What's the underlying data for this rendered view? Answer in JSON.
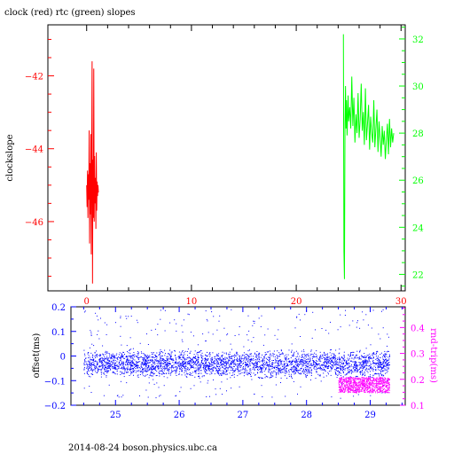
{
  "title": "clock (red) rtc (green) slopes",
  "footer": "2014-08-24 boson.physics.ubc.ca",
  "colors": {
    "red": "#ff0000",
    "green": "#00ff00",
    "blue": "#0000ff",
    "magenta": "#ff00ff",
    "black": "#000000"
  },
  "chart_data": [
    {
      "type": "line",
      "title": "clock (red) rtc (green) slopes",
      "ylabel": "clockslope",
      "xlim": [
        -3.7,
        30.4
      ],
      "ylim": [
        -47.9,
        -40.6
      ],
      "x_ticks": [
        0,
        10,
        20,
        30
      ],
      "y_ticks": [
        -42,
        -44,
        -46
      ],
      "y2lim": [
        21.3,
        32.6
      ],
      "y2_ticks": [
        22,
        24,
        26,
        28,
        30,
        32
      ],
      "series": [
        {
          "name": "clock",
          "axis": "left",
          "color": "#ff0000",
          "x": [
            0.0,
            0.04,
            0.08,
            0.12,
            0.16,
            0.2,
            0.24,
            0.28,
            0.32,
            0.36,
            0.4,
            0.44,
            0.48,
            0.52,
            0.56,
            0.6,
            0.64,
            0.68,
            0.72,
            0.76,
            0.8,
            0.84,
            0.88,
            0.92,
            0.96,
            1.0,
            1.04,
            1.08,
            1.12
          ],
          "y": [
            -45.0,
            -45.6,
            -44.6,
            -45.9,
            -44.7,
            -45.4,
            -43.5,
            -46.6,
            -44.4,
            -45.8,
            -43.6,
            -46.9,
            -44.1,
            -41.6,
            -47.7,
            -44.3,
            -45.9,
            -41.8,
            -46.0,
            -44.2,
            -45.5,
            -44.8,
            -46.2,
            -44.1,
            -45.7,
            -44.9,
            -45.3,
            -45.0,
            -45.2
          ]
        },
        {
          "name": "rtc",
          "axis": "right",
          "color": "#00ff00",
          "x": [
            24.5,
            24.55,
            24.6,
            24.65,
            24.7,
            24.75,
            24.8,
            24.85,
            24.9,
            24.95,
            25.0,
            25.1,
            25.2,
            25.3,
            25.4,
            25.5,
            25.6,
            25.7,
            25.8,
            25.9,
            26.0,
            26.1,
            26.2,
            26.3,
            26.4,
            26.5,
            26.6,
            26.7,
            26.8,
            26.9,
            27.0,
            27.1,
            27.2,
            27.3,
            27.4,
            27.5,
            27.6,
            27.7,
            27.8,
            27.9,
            28.0,
            28.1,
            28.2,
            28.3,
            28.4,
            28.5,
            28.6,
            28.7,
            28.8,
            28.9,
            29.0,
            29.1,
            29.2,
            29.3
          ],
          "y": [
            32.2,
            23.0,
            21.8,
            28.4,
            30.0,
            28.2,
            29.4,
            27.9,
            28.7,
            29.6,
            28.5,
            29.1,
            28.2,
            30.4,
            28.3,
            29.5,
            27.6,
            28.8,
            28.0,
            29.7,
            27.8,
            28.6,
            30.1,
            28.1,
            28.9,
            27.5,
            29.9,
            27.7,
            28.4,
            29.2,
            27.3,
            28.7,
            28.0,
            27.6,
            29.4,
            27.4,
            28.2,
            29.0,
            27.2,
            28.5,
            27.8,
            27.0,
            28.3,
            27.5,
            28.1,
            26.9,
            27.7,
            28.4,
            27.1,
            28.6,
            27.4,
            28.2,
            27.6,
            28.0
          ]
        }
      ]
    },
    {
      "type": "scatter",
      "ylabel": "offset(ms)",
      "y2label": "rnd-trip(ms)",
      "xlim": [
        24.3,
        29.55
      ],
      "ylim": [
        -0.2,
        0.2
      ],
      "x_ticks": [
        25,
        26,
        27,
        28,
        29
      ],
      "y_ticks": [
        0.2,
        0.1,
        0,
        -0.1,
        -0.2
      ],
      "y_tick_labels": [
        "0.2",
        "0.1",
        "0",
        "−0.1",
        "−0.2"
      ],
      "y2lim": [
        0.1,
        0.48
      ],
      "y2_ticks": [
        0.1,
        0.2,
        0.3,
        0.4
      ],
      "series": [
        {
          "name": "offset",
          "axis": "left",
          "color": "#0000ff",
          "x_range": [
            24.5,
            29.3
          ],
          "band": [
            -0.03,
            0.03
          ],
          "outlier_range": [
            -0.17,
            0.19
          ]
        },
        {
          "name": "rnd-trip",
          "axis": "right",
          "color": "#ff00ff",
          "x_range": [
            28.5,
            29.3
          ],
          "band": [
            0.15,
            0.21
          ]
        }
      ]
    }
  ]
}
